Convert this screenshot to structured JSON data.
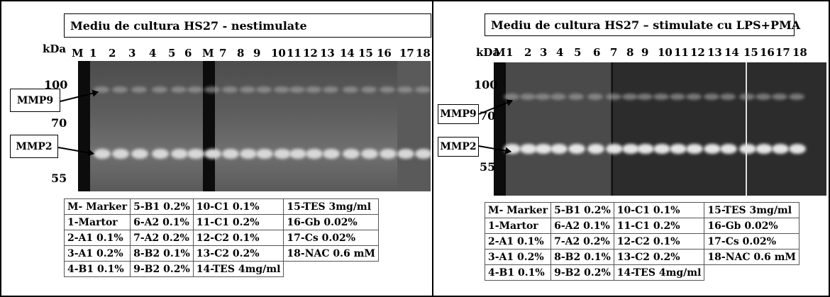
{
  "left": {
    "title": "Mediu de cultura HS27 - nestimulate",
    "kda_label": "kDa",
    "lanes": [
      "M",
      "1",
      "2",
      "3",
      "4",
      "5",
      "6",
      "M",
      "7",
      "8",
      "9",
      "10",
      "11",
      "12",
      "13",
      "14",
      "15",
      "16",
      "17",
      "18"
    ],
    "markers": [
      "100",
      "70",
      "55"
    ],
    "mmp9": "MMP9",
    "mmp2": "MMP2"
  },
  "right": {
    "title": "Mediu de cultura HS27 – stimulate cu LPS+PMA",
    "kda_label": "kDa",
    "lanes": [
      "M",
      "1",
      "2",
      "3",
      "4",
      "5",
      "6",
      "7",
      "8",
      "9",
      "10",
      "11",
      "12",
      "13",
      "14",
      "15",
      "16",
      "17",
      "18"
    ],
    "markers": [
      "100",
      "70",
      "55"
    ],
    "mmp9": "MMP9",
    "mmp2": "MMP2"
  },
  "legend": [
    [
      "M- Marker",
      "5-B1 0.2%",
      "10-C1 0.1%",
      "15-TES 3mg/ml"
    ],
    [
      "1-Martor",
      "6-A2 0.1%",
      "11-C1 0.2%",
      "16-Gb 0.02%"
    ],
    [
      "2-A1 0.1%",
      "7-A2 0.2%",
      "12-C2 0.1%",
      "17-Cs 0.02%"
    ],
    [
      "3-A1 0.2%",
      "8-B2 0.1%",
      "13-C2 0.2%",
      "18-NAC 0.6 mM"
    ],
    [
      "4-B1 0.1%",
      "9-B2 0.2%",
      "14-TES 4mg/ml",
      ""
    ]
  ],
  "colors": {
    "gel_left": "#6a6a6a",
    "gel_right": "#2a2a2a",
    "band_bright": "#e6e6e6",
    "marker_lane": "#0c0c0c"
  }
}
